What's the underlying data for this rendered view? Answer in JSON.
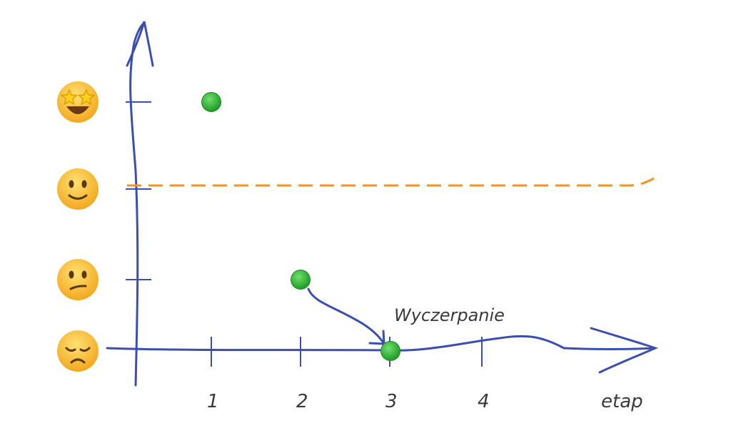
{
  "chart_data": {
    "type": "scatter",
    "xlabel": "etap",
    "x_ticks": [
      "1",
      "2",
      "3",
      "4"
    ],
    "y_ticks": [
      {
        "level": 1,
        "icon": "disappointed-face-emoji"
      },
      {
        "level": 2,
        "icon": "confused-face-emoji"
      },
      {
        "level": 3,
        "icon": "slightly-smiling-face-emoji"
      },
      {
        "level": 4,
        "icon": "star-struck-face-emoji"
      }
    ],
    "points": [
      {
        "x": 1,
        "y": 4
      },
      {
        "x": 2,
        "y": 2
      },
      {
        "x": 3,
        "y": 1
      }
    ],
    "reference_line": {
      "y": 3,
      "style": "dashed",
      "color": "#f7931e"
    },
    "annotation": {
      "text": "Wyczerpanie",
      "arrow_from": {
        "x": 2,
        "y": 2
      },
      "arrow_to": {
        "x": 3,
        "y": 1
      }
    },
    "colors": {
      "axis": "#3a4fb0",
      "point": "#2eaa2e",
      "reference": "#f7931e"
    }
  }
}
